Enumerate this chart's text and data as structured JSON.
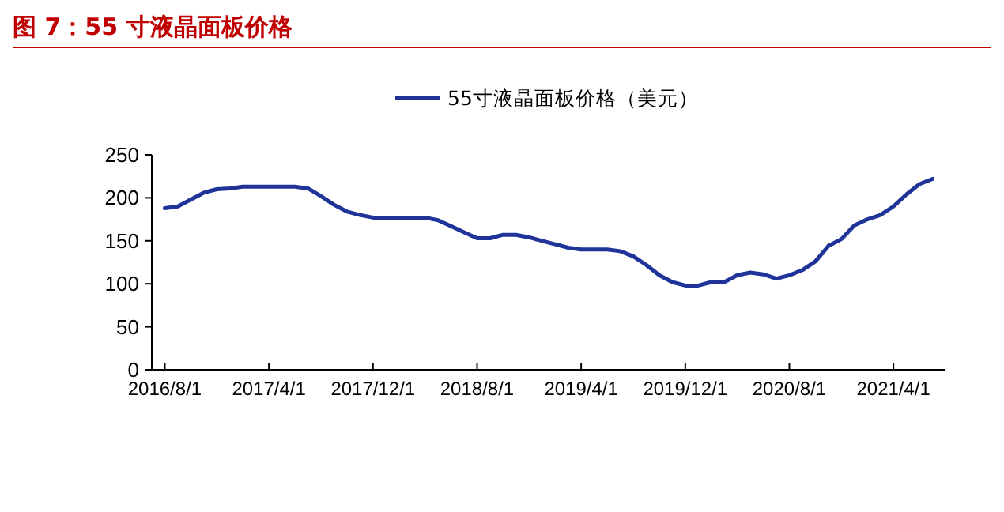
{
  "chart_data": {
    "type": "line",
    "title": "图 7：55 寸液晶面板价格",
    "x": [
      "2016-08",
      "2016-09",
      "2016-10",
      "2016-11",
      "2016-12",
      "2017-01",
      "2017-02",
      "2017-03",
      "2017-04",
      "2017-05",
      "2017-06",
      "2017-07",
      "2017-08",
      "2017-09",
      "2017-10",
      "2017-11",
      "2017-12",
      "2018-01",
      "2018-02",
      "2018-03",
      "2018-04",
      "2018-05",
      "2018-06",
      "2018-07",
      "2018-08",
      "2018-09",
      "2018-10",
      "2018-11",
      "2018-12",
      "2019-01",
      "2019-02",
      "2019-03",
      "2019-04",
      "2019-05",
      "2019-06",
      "2019-07",
      "2019-08",
      "2019-09",
      "2019-10",
      "2019-11",
      "2019-12",
      "2020-01",
      "2020-02",
      "2020-03",
      "2020-04",
      "2020-05",
      "2020-06",
      "2020-07",
      "2020-08",
      "2020-09",
      "2020-10",
      "2020-11",
      "2020-12",
      "2021-01",
      "2021-02",
      "2021-03",
      "2021-04",
      "2021-05",
      "2021-06",
      "2021-07"
    ],
    "series": [
      {
        "name": "55寸液晶面板价格（美元）",
        "color": "#1f3399",
        "values": [
          188,
          190,
          198,
          206,
          210,
          211,
          213,
          213,
          213,
          213,
          213,
          211,
          202,
          192,
          184,
          180,
          177,
          177,
          177,
          177,
          177,
          174,
          167,
          160,
          153,
          153,
          157,
          157,
          154,
          150,
          146,
          142,
          140,
          140,
          140,
          138,
          132,
          122,
          110,
          102,
          98,
          98,
          102,
          102,
          110,
          113,
          111,
          106,
          110,
          116,
          126,
          144,
          152,
          168,
          175,
          180,
          190,
          204,
          216,
          222
        ]
      }
    ],
    "xlim": [
      "2016-07",
      "2021-08"
    ],
    "xticks": [
      {
        "value": "2016-08",
        "label": "2016/8/1"
      },
      {
        "value": "2017-04",
        "label": "2017/4/1"
      },
      {
        "value": "2017-12",
        "label": "2017/12/1"
      },
      {
        "value": "2018-08",
        "label": "2018/8/1"
      },
      {
        "value": "2019-04",
        "label": "2019/4/1"
      },
      {
        "value": "2019-12",
        "label": "2019/12/1"
      },
      {
        "value": "2020-08",
        "label": "2020/8/1"
      },
      {
        "value": "2021-04",
        "label": "2021/4/1"
      }
    ],
    "ylim": [
      0,
      250
    ],
    "yticks": [
      0,
      50,
      100,
      150,
      200,
      250
    ],
    "legend": "top",
    "grid": false,
    "marker": "none",
    "line_style": "solid"
  }
}
